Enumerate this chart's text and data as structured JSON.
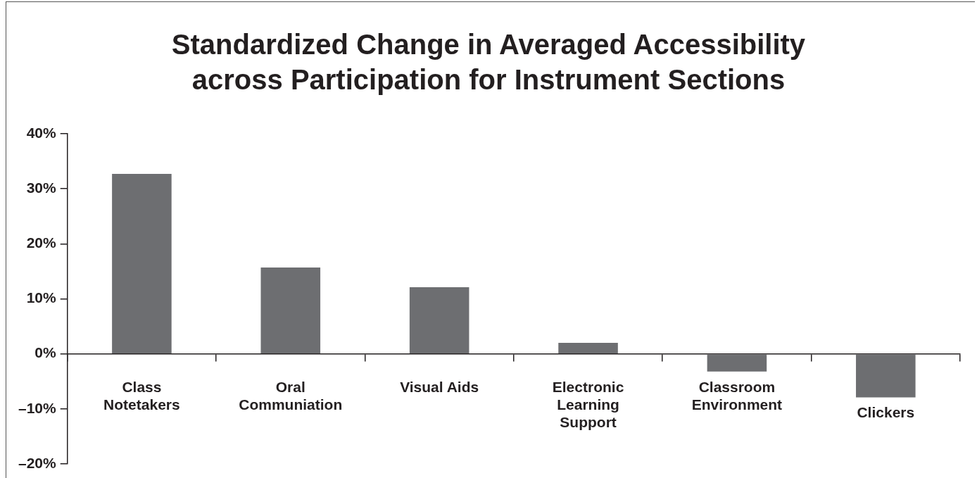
{
  "chart_data": {
    "type": "bar",
    "title": "Standardized Change in Averaged Accessibility across Participation for Instrument Sections",
    "categories": [
      "Class Notetakers",
      "Oral Communiation",
      "Visual Aids",
      "Electronic Learning Support",
      "Classroom Environment",
      "Clickers"
    ],
    "values": [
      32.7,
      15.7,
      12.1,
      2.0,
      -3.2,
      -7.9
    ],
    "color": "#6d6e71",
    "ylim": [
      -20,
      40
    ],
    "yticks": [
      {
        "value": -20,
        "label": "–20%"
      },
      {
        "value": -10,
        "label": "–10%"
      },
      {
        "value": 0,
        "label": "0%"
      },
      {
        "value": 10,
        "label": "10%"
      },
      {
        "value": 20,
        "label": "20%"
      },
      {
        "value": 30,
        "label": "30%"
      },
      {
        "value": 40,
        "label": "40%"
      }
    ],
    "grid": false,
    "legend": false
  }
}
